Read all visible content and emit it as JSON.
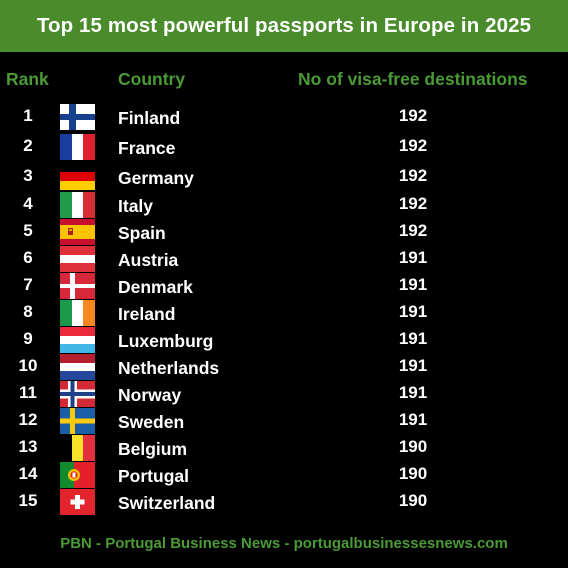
{
  "title": "Top 15 most powerful passports in Europe in 2025",
  "headers": {
    "rank": "Rank",
    "country": "Country",
    "visa": "No of visa-free destinations"
  },
  "rows": [
    {
      "rank": "1",
      "flag": "finland-flag-icon",
      "country": "Finland",
      "visa": "192"
    },
    {
      "rank": "2",
      "flag": "france-flag-icon",
      "country": "France",
      "visa": "192"
    },
    {
      "rank": "3",
      "flag": "germany-flag-icon",
      "country": "Germany",
      "visa": "192"
    },
    {
      "rank": "4",
      "flag": "italy-flag-icon",
      "country": "Italy",
      "visa": "192"
    },
    {
      "rank": "5",
      "flag": "spain-flag-icon",
      "country": "Spain",
      "visa": "192"
    },
    {
      "rank": "6",
      "flag": "austria-flag-icon",
      "country": "Austria",
      "visa": "191"
    },
    {
      "rank": "7",
      "flag": "denmark-flag-icon",
      "country": "Denmark",
      "visa": "191"
    },
    {
      "rank": "8",
      "flag": "ireland-flag-icon",
      "country": "Ireland",
      "visa": "191"
    },
    {
      "rank": "9",
      "flag": "luxemburg-flag-icon",
      "country": "Luxemburg",
      "visa": "191"
    },
    {
      "rank": "10",
      "flag": "netherlands-flag-icon",
      "country": "Netherlands",
      "visa": "191"
    },
    {
      "rank": "11",
      "flag": "norway-flag-icon",
      "country": "Norway",
      "visa": "191"
    },
    {
      "rank": "12",
      "flag": "sweden-flag-icon",
      "country": "Sweden",
      "visa": "191"
    },
    {
      "rank": "13",
      "flag": "belgium-flag-icon",
      "country": "Belgium",
      "visa": "190"
    },
    {
      "rank": "14",
      "flag": "portugal-flag-icon",
      "country": "Portugal",
      "visa": "190"
    },
    {
      "rank": "15",
      "flag": "switzerland-flag-icon",
      "country": "Switzerland",
      "visa": "190"
    }
  ],
  "footer": "PBN - Portugal Business News - portugalbusinessesnews.com",
  "colors": {
    "banner": "#4a8b2c",
    "header_text": "#4a9a35",
    "background": "#000000"
  }
}
